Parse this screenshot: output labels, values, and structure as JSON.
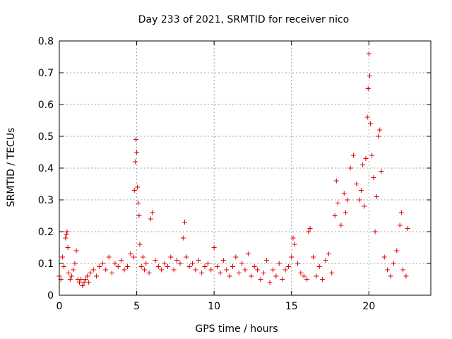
{
  "chart_data": {
    "type": "scatter",
    "title": "Day 233 of 2021, SRMTID for receiver nico",
    "xlabel": "GPS time / hours",
    "ylabel": "SRMTID / TECUs",
    "xlim": [
      0,
      24
    ],
    "ylim": [
      0,
      0.8
    ],
    "xticks": [
      0,
      5,
      10,
      15,
      20
    ],
    "xtick_labels": [
      "0",
      "5",
      "10",
      "15",
      "20"
    ],
    "yticks": [
      0,
      0.1,
      0.2,
      0.3,
      0.4,
      0.5,
      0.6,
      0.7,
      0.8
    ],
    "ytick_labels": [
      "0",
      "0.1",
      "0.2",
      "0.3",
      "0.4",
      "0.5",
      "0.6",
      "0.7",
      "0.8"
    ],
    "grid": true,
    "marker": "+",
    "color": "#e00000",
    "series": [
      {
        "name": "SRMTID",
        "x": [
          0.0,
          0.1,
          0.2,
          0.3,
          0.4,
          0.45,
          0.5,
          0.55,
          0.6,
          0.7,
          0.8,
          0.9,
          1.0,
          1.1,
          1.2,
          1.3,
          1.4,
          1.5,
          1.6,
          1.7,
          1.8,
          1.9,
          2.0,
          2.2,
          2.4,
          2.6,
          2.8,
          3.0,
          3.2,
          3.4,
          3.6,
          3.8,
          4.0,
          4.2,
          4.4,
          4.6,
          4.8,
          4.85,
          4.9,
          4.95,
          5.0,
          5.05,
          5.1,
          5.15,
          5.2,
          5.3,
          5.4,
          5.5,
          5.6,
          5.8,
          5.9,
          6.0,
          6.2,
          6.4,
          6.6,
          6.8,
          7.0,
          7.2,
          7.4,
          7.6,
          7.8,
          8.0,
          8.1,
          8.2,
          8.4,
          8.6,
          8.8,
          9.0,
          9.2,
          9.4,
          9.6,
          9.8,
          10.0,
          10.2,
          10.4,
          10.6,
          10.8,
          11.0,
          11.2,
          11.4,
          11.6,
          11.8,
          12.0,
          12.2,
          12.4,
          12.6,
          12.8,
          13.0,
          13.2,
          13.4,
          13.6,
          13.8,
          14.0,
          14.2,
          14.4,
          14.6,
          14.8,
          15.0,
          15.1,
          15.2,
          15.4,
          15.6,
          15.8,
          16.0,
          16.1,
          16.2,
          16.4,
          16.6,
          16.8,
          17.0,
          17.2,
          17.4,
          17.6,
          17.8,
          17.9,
          18.0,
          18.2,
          18.4,
          18.5,
          18.6,
          18.8,
          19.0,
          19.2,
          19.4,
          19.5,
          19.6,
          19.7,
          19.8,
          19.9,
          19.95,
          20.0,
          20.05,
          20.1,
          20.2,
          20.3,
          20.4,
          20.5,
          20.6,
          20.7,
          20.8,
          21.0,
          21.2,
          21.4,
          21.6,
          21.8,
          22.0,
          22.1,
          22.2,
          22.4,
          22.5
        ],
        "y": [
          0.06,
          0.05,
          0.12,
          0.09,
          0.18,
          0.19,
          0.2,
          0.15,
          0.07,
          0.05,
          0.06,
          0.08,
          0.1,
          0.14,
          0.05,
          0.04,
          0.05,
          0.03,
          0.04,
          0.05,
          0.06,
          0.04,
          0.07,
          0.08,
          0.06,
          0.09,
          0.1,
          0.08,
          0.12,
          0.07,
          0.1,
          0.09,
          0.11,
          0.08,
          0.09,
          0.13,
          0.12,
          0.33,
          0.42,
          0.49,
          0.45,
          0.34,
          0.29,
          0.25,
          0.16,
          0.09,
          0.12,
          0.08,
          0.1,
          0.07,
          0.24,
          0.26,
          0.11,
          0.09,
          0.08,
          0.1,
          0.09,
          0.12,
          0.08,
          0.11,
          0.1,
          0.18,
          0.23,
          0.12,
          0.09,
          0.1,
          0.08,
          0.11,
          0.07,
          0.09,
          0.1,
          0.08,
          0.15,
          0.09,
          0.07,
          0.11,
          0.08,
          0.06,
          0.09,
          0.12,
          0.07,
          0.1,
          0.08,
          0.13,
          0.06,
          0.09,
          0.08,
          0.05,
          0.07,
          0.11,
          0.04,
          0.08,
          0.06,
          0.1,
          0.05,
          0.08,
          0.09,
          0.12,
          0.18,
          0.16,
          0.1,
          0.07,
          0.06,
          0.05,
          0.2,
          0.21,
          0.12,
          0.06,
          0.09,
          0.05,
          0.11,
          0.13,
          0.07,
          0.25,
          0.36,
          0.29,
          0.22,
          0.32,
          0.26,
          0.3,
          0.4,
          0.44,
          0.35,
          0.3,
          0.33,
          0.41,
          0.28,
          0.43,
          0.56,
          0.65,
          0.76,
          0.69,
          0.54,
          0.44,
          0.37,
          0.2,
          0.31,
          0.5,
          0.52,
          0.39,
          0.12,
          0.08,
          0.06,
          0.1,
          0.14,
          0.22,
          0.26,
          0.08,
          0.06,
          0.21
        ]
      }
    ]
  }
}
